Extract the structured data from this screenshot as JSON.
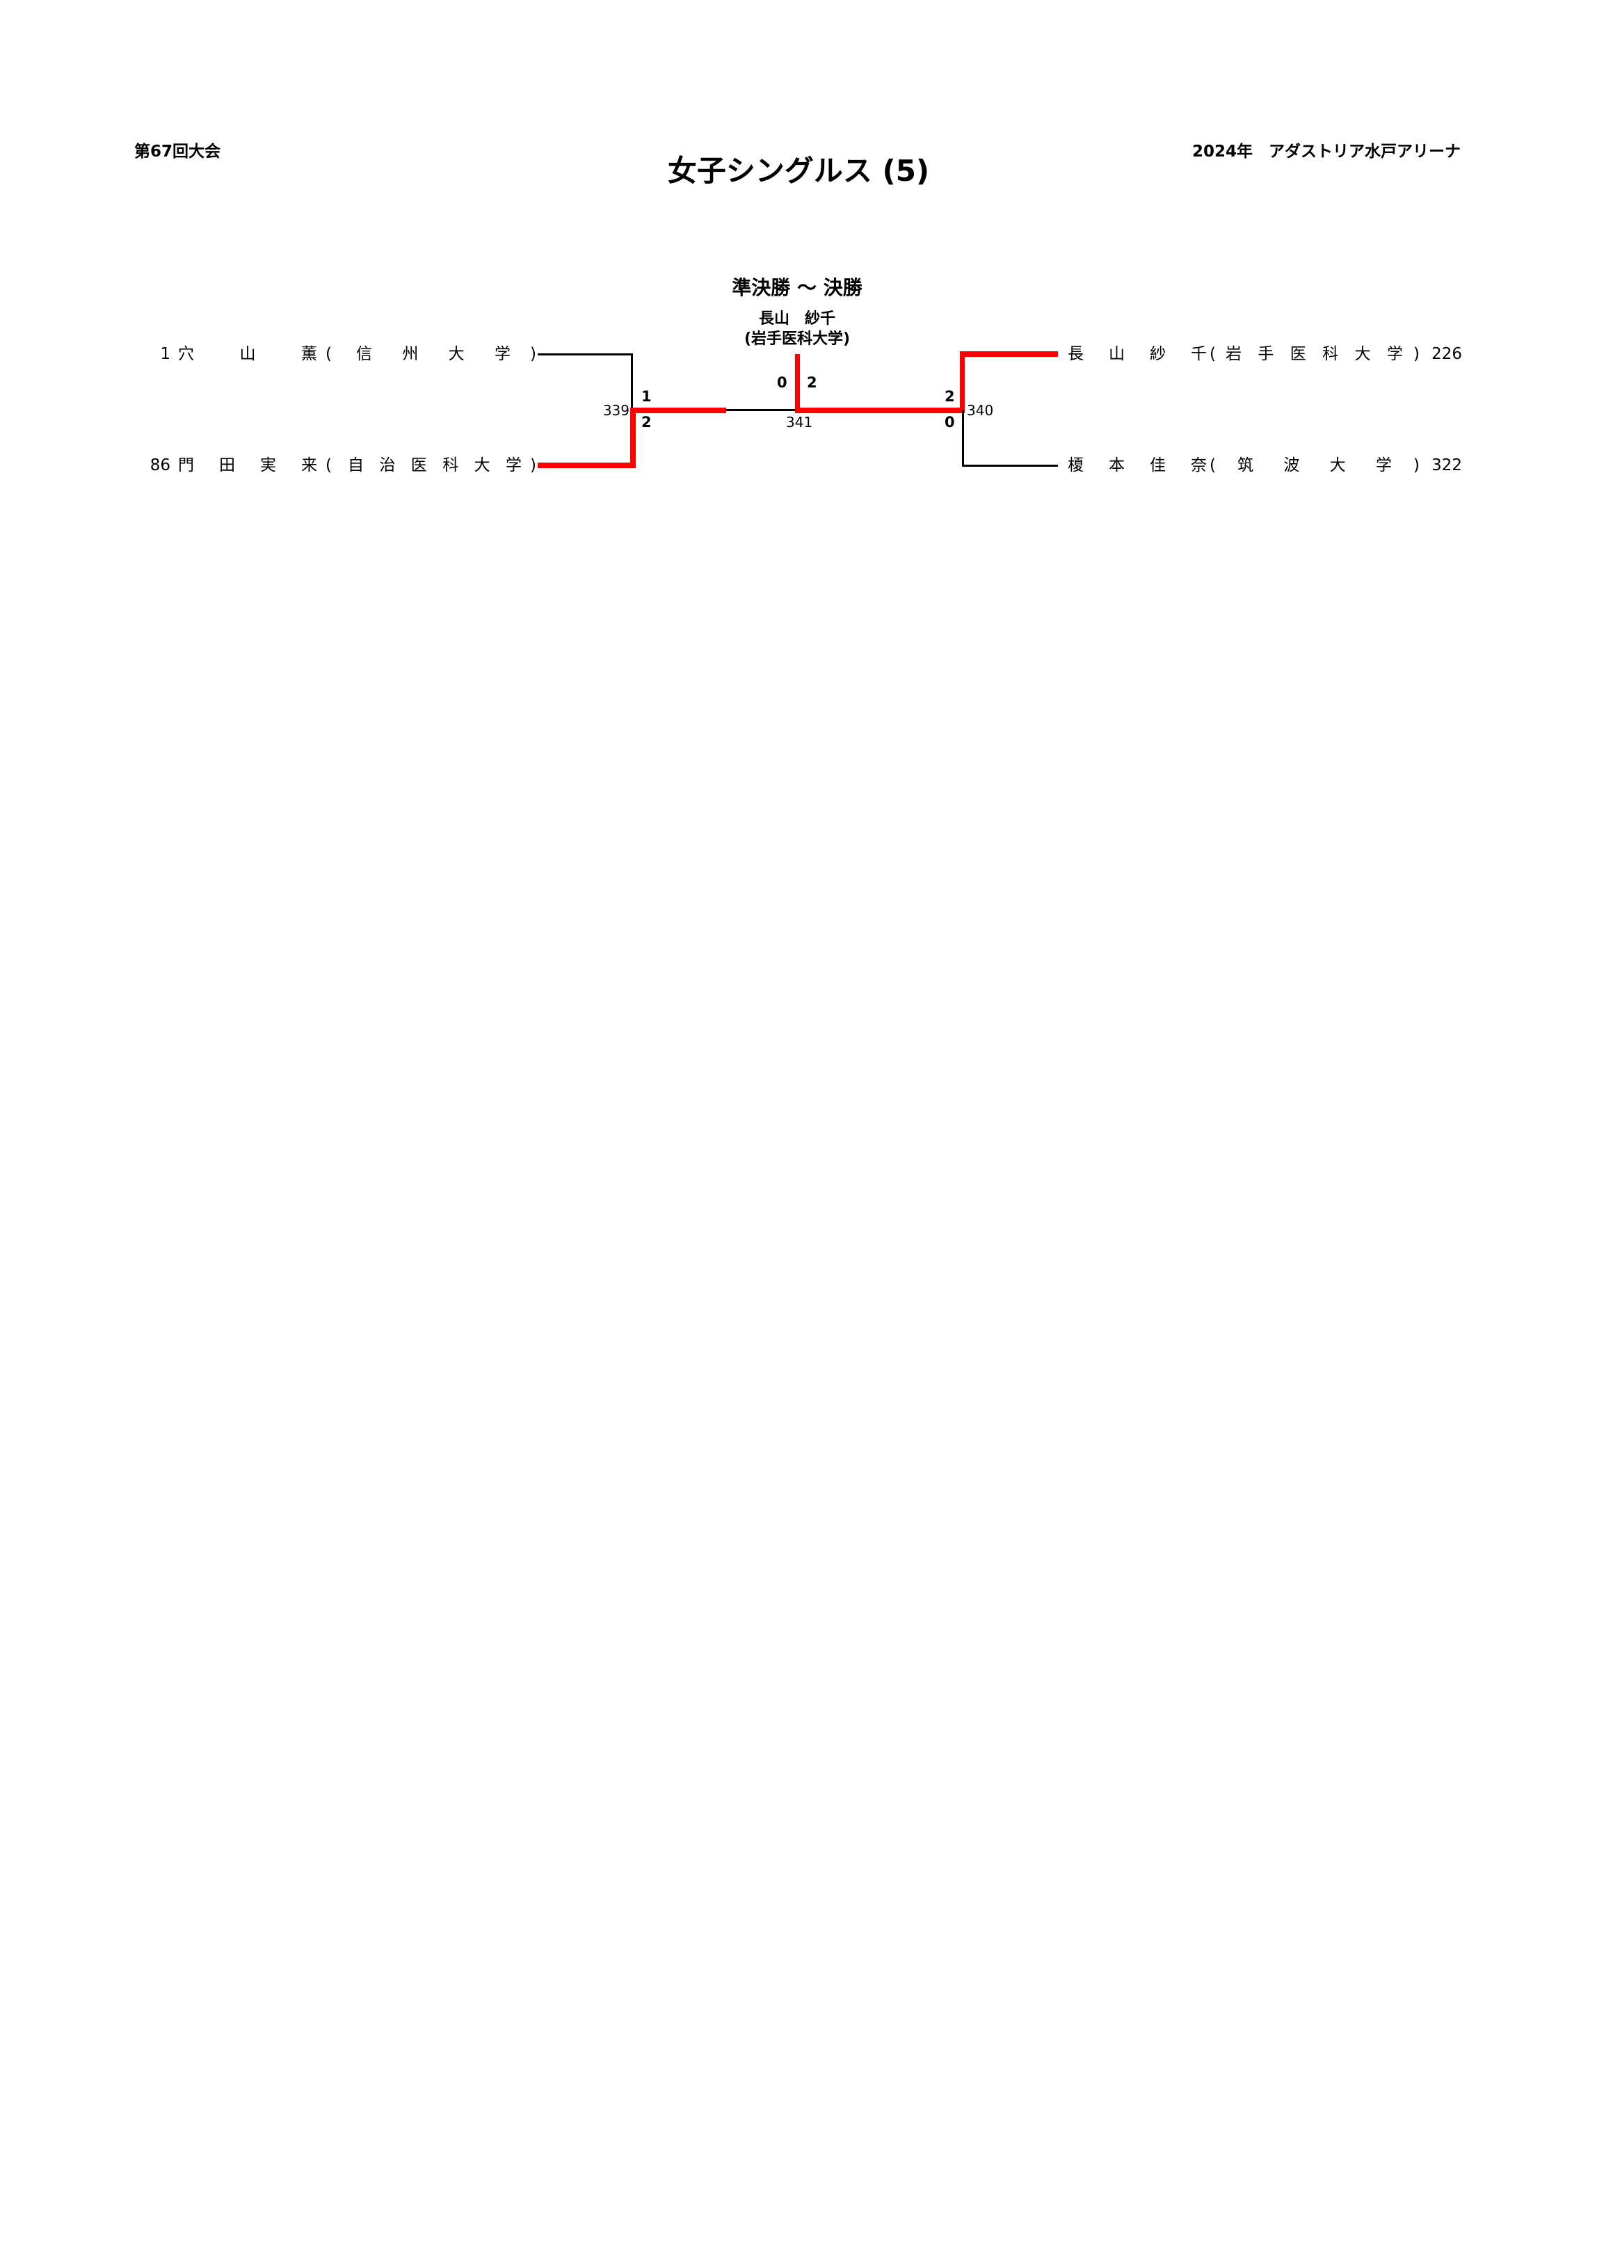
{
  "header": {
    "tournament": "第67回大会",
    "venue": "2024年　アダストリア水戸アリーナ"
  },
  "title": "女子シングルス (5)",
  "round_label": "準決勝 ～ 決勝",
  "champion": {
    "name": "長山　紗千",
    "school": "(岩手医科大学)"
  },
  "players": [
    {
      "seed": "1",
      "name": "穴山薫",
      "school": "信州大学",
      "side": "left"
    },
    {
      "seed": "86",
      "name": "門田実来",
      "school": "自治医科大学",
      "side": "left"
    },
    {
      "seed": "226",
      "name": "長山紗千",
      "school": "岩手医科大学",
      "side": "right"
    },
    {
      "seed": "322",
      "name": "榎本佳奈",
      "school": "筑波大学",
      "side": "right"
    }
  ],
  "matches": {
    "sf_left": {
      "id": "339",
      "score_top": "1",
      "score_bottom": "2"
    },
    "sf_right": {
      "id": "340",
      "score_top": "2",
      "score_bottom": "0"
    },
    "final": {
      "id": "341",
      "score_left": "0",
      "score_right": "2"
    }
  },
  "paren_open": "(",
  "paren_close": ")",
  "colors": {
    "winner_line": "#ff0000",
    "line": "#000000"
  }
}
